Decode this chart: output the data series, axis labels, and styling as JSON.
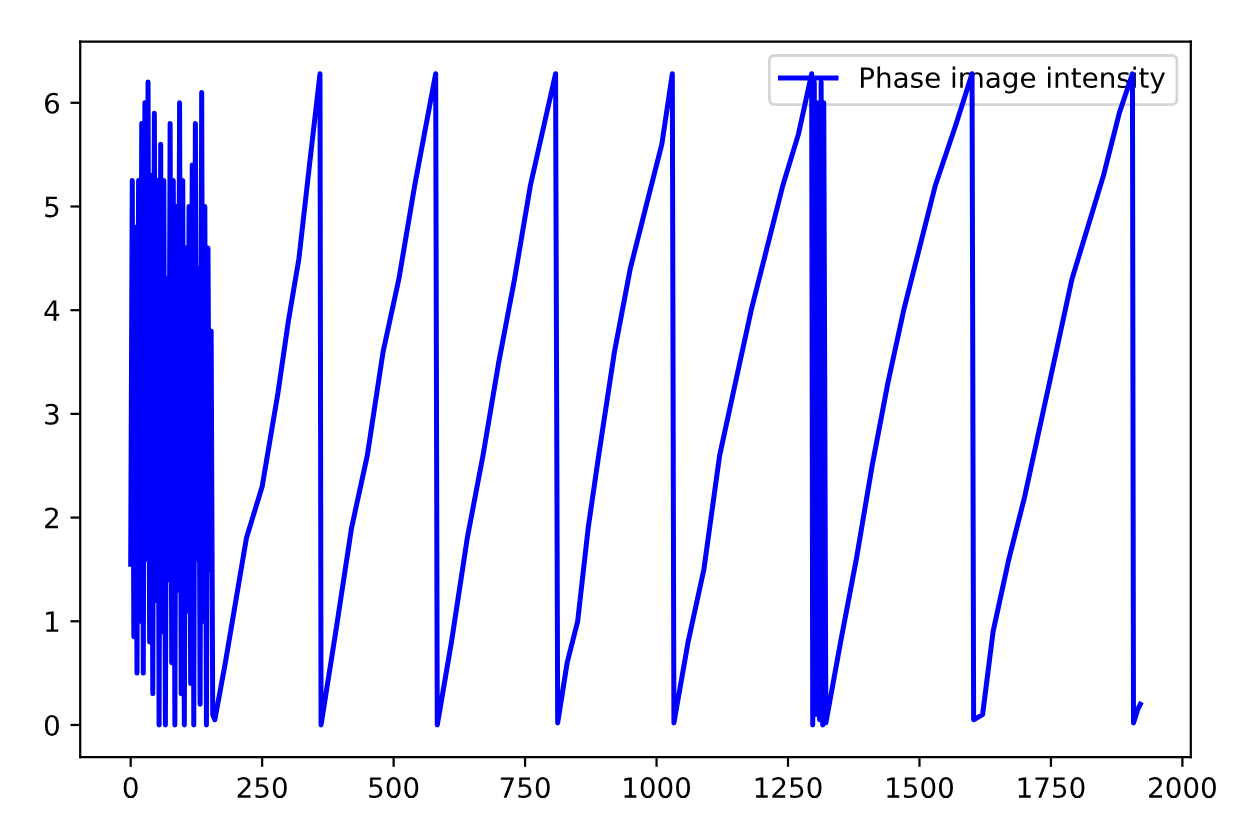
{
  "chart_data": {
    "type": "line",
    "xlim": [
      -96,
      2016
    ],
    "ylim": [
      -0.31,
      6.59
    ],
    "xticks": [
      0,
      250,
      500,
      750,
      1000,
      1250,
      1500,
      1750,
      2000
    ],
    "yticks": [
      0,
      1,
      2,
      3,
      4,
      5,
      6
    ],
    "grid": false,
    "legend": "top right",
    "series": [
      {
        "name": "Phase image intensity",
        "color": "#0000ff",
        "x": [
          0,
          3,
          6,
          9,
          12,
          15,
          18,
          21,
          24,
          27,
          30,
          33,
          36,
          39,
          42,
          45,
          48,
          51,
          54,
          57,
          60,
          63,
          66,
          69,
          72,
          75,
          78,
          81,
          84,
          87,
          90,
          93,
          96,
          99,
          102,
          105,
          108,
          111,
          114,
          117,
          120,
          123,
          126,
          129,
          132,
          135,
          138,
          141,
          144,
          147,
          150,
          153,
          156,
          160,
          180,
          200,
          220,
          250,
          280,
          300,
          320,
          340,
          360,
          362,
          390,
          420,
          450,
          480,
          510,
          540,
          580,
          583,
          610,
          640,
          670,
          700,
          730,
          760,
          808,
          812,
          830,
          850,
          870,
          890,
          920,
          950,
          980,
          1010,
          1030,
          1033,
          1060,
          1090,
          1120,
          1150,
          1180,
          1210,
          1240,
          1270,
          1295,
          1297,
          1300,
          1303,
          1306,
          1310,
          1313,
          1316,
          1318,
          1322,
          1350,
          1380,
          1410,
          1440,
          1470,
          1500,
          1530,
          1570,
          1600,
          1603,
          1620,
          1640,
          1670,
          1700,
          1730,
          1760,
          1790,
          1820,
          1850,
          1880,
          1905,
          1907,
          1915,
          1920
        ],
        "values": [
          1.55,
          5.25,
          0.85,
          4.8,
          0.5,
          5.25,
          1.0,
          5.8,
          0.5,
          6.0,
          1.6,
          6.2,
          0.8,
          5.3,
          0.3,
          5.9,
          1.2,
          5.25,
          0.0,
          5.6,
          0.9,
          5.25,
          0.0,
          4.3,
          1.4,
          5.8,
          0.6,
          5.25,
          0.0,
          5.0,
          1.3,
          6.0,
          0.3,
          5.25,
          0.0,
          4.6,
          1.1,
          5.0,
          0.4,
          5.4,
          0.0,
          5.8,
          1.6,
          4.4,
          0.2,
          6.1,
          1.0,
          5.0,
          0.0,
          4.6,
          1.5,
          3.8,
          0.1,
          0.05,
          0.6,
          1.2,
          1.8,
          2.3,
          3.2,
          3.9,
          4.5,
          5.4,
          6.28,
          0.0,
          0.9,
          1.9,
          2.6,
          3.6,
          4.3,
          5.2,
          6.28,
          0.0,
          0.8,
          1.8,
          2.6,
          3.5,
          4.3,
          5.2,
          6.28,
          0.02,
          0.6,
          1.0,
          1.9,
          2.6,
          3.6,
          4.4,
          5.0,
          5.6,
          6.28,
          0.02,
          0.8,
          1.5,
          2.6,
          3.3,
          4.0,
          4.6,
          5.2,
          5.7,
          6.28,
          0.0,
          6.2,
          0.1,
          6.0,
          0.05,
          6.2,
          0.0,
          6.0,
          0.02,
          0.8,
          1.6,
          2.5,
          3.3,
          4.0,
          4.6,
          5.2,
          5.8,
          6.28,
          0.05,
          0.1,
          0.9,
          1.6,
          2.2,
          2.9,
          3.6,
          4.3,
          4.8,
          5.3,
          5.9,
          6.28,
          0.02,
          0.15,
          0.2
        ]
      }
    ]
  }
}
